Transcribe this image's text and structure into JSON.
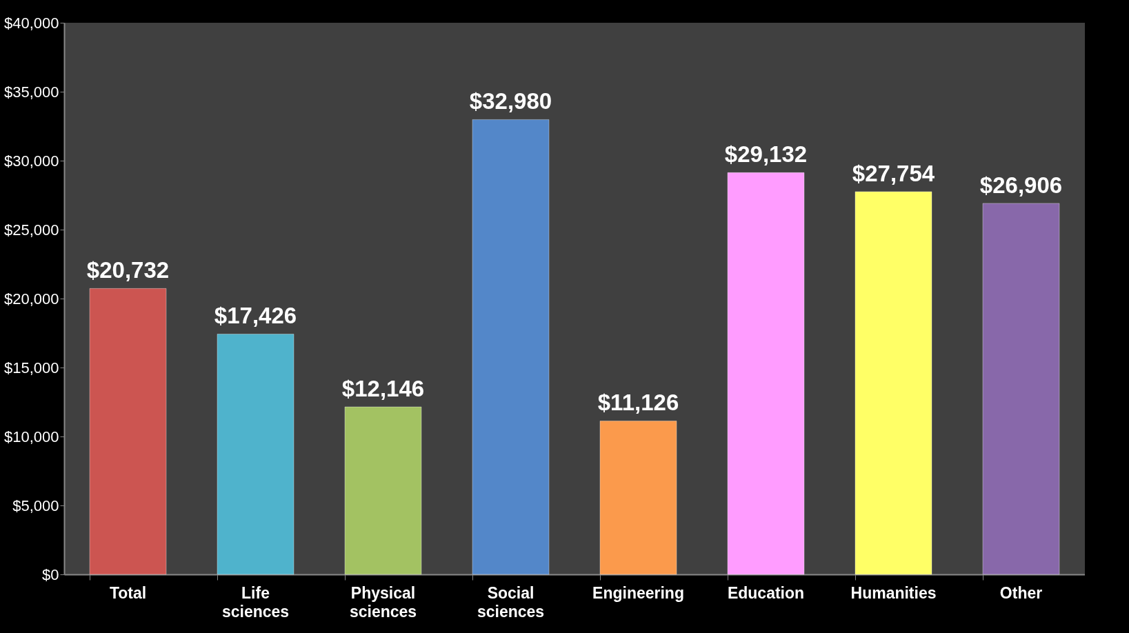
{
  "chart_data": {
    "type": "bar",
    "categories": [
      "Total",
      "Life sciences",
      "Physical sciences",
      "Social sciences",
      "Engineering",
      "Education",
      "Humanities",
      "Other"
    ],
    "values": [
      20732,
      17426,
      12146,
      32980,
      11126,
      29132,
      27754,
      26906
    ],
    "value_labels": [
      "$20,732",
      "$17,426",
      "$12,146",
      "$32,980",
      "$11,126",
      "$29,132",
      "$27,754",
      "$26,906"
    ],
    "colors": [
      "#cc5551",
      "#4fb3cc",
      "#a3c262",
      "#5387c9",
      "#fb9a4c",
      "#ff9cff",
      "#ffff66",
      "#8868aa"
    ],
    "ylim": [
      0,
      40000
    ],
    "yticks": [
      {
        "value": 0,
        "label": "$0"
      },
      {
        "value": 5000,
        "label": "$5,000"
      },
      {
        "value": 10000,
        "label": "$10,000"
      },
      {
        "value": 15000,
        "label": "$15,000"
      },
      {
        "value": 20000,
        "label": "$20,000"
      },
      {
        "value": 25000,
        "label": "$25,000"
      },
      {
        "value": 30000,
        "label": "$30,000"
      },
      {
        "value": 35000,
        "label": "$35,000"
      },
      {
        "value": 40000,
        "label": "$40,000"
      }
    ]
  }
}
